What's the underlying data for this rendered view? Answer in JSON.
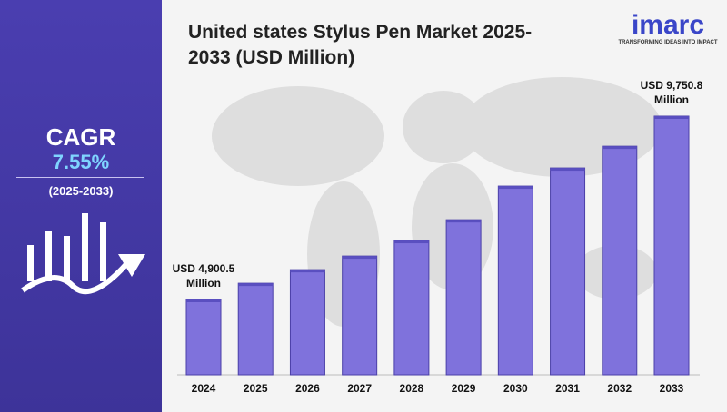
{
  "chart_data": {
    "type": "bar",
    "title": "United states Stylus Pen Market 2025-2033 (USD Million)",
    "categories": [
      "2024",
      "2025",
      "2026",
      "2027",
      "2028",
      "2029",
      "2030",
      "2031",
      "2032",
      "2033"
    ],
    "values": [
      4900.5,
      5330,
      5690,
      6050,
      6460,
      7010,
      7900,
      8380,
      8955,
      9750.8
    ],
    "value_labels": [
      "USD 4,900.5 Million",
      null,
      null,
      null,
      null,
      null,
      null,
      null,
      null,
      "USD  9,750.8 Million"
    ],
    "color": "#7f72dc"
  },
  "sidebar": {
    "label": "CAGR",
    "value": "7.55%",
    "period": "(2025-2033)"
  },
  "logo": {
    "name": "imarc",
    "tagline": "TRANSFORMING IDEAS INTO IMPACT"
  }
}
